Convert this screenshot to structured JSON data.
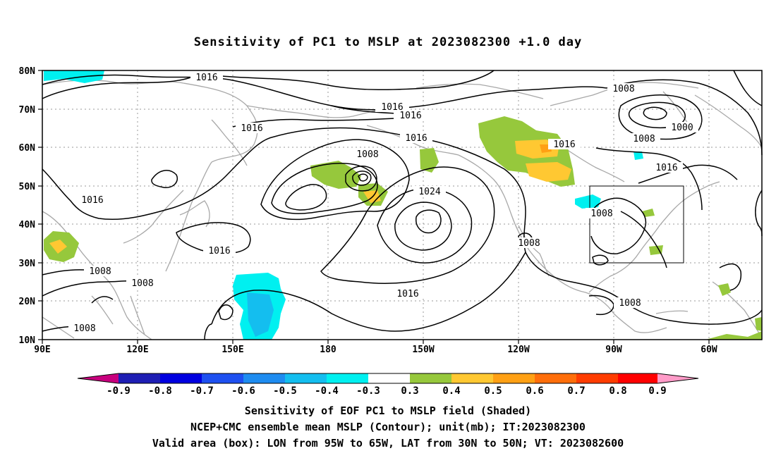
{
  "title": "Sensitivity of PC1 to MSLP at 2023082300 +1.0 day",
  "lat_labels": [
    "80N",
    "70N",
    "60N",
    "50N",
    "40N",
    "30N",
    "20N",
    "10N"
  ],
  "lon_labels": [
    "90E",
    "120E",
    "150E",
    "180",
    "150W",
    "120W",
    "90W",
    "60W"
  ],
  "contour_labels": [
    "1016",
    "1016",
    "1016",
    "1016",
    "1016",
    "1016",
    "1016",
    "1016",
    "1016",
    "1016",
    "1008",
    "1008",
    "1008",
    "1008",
    "1008",
    "1008",
    "1008",
    "1008",
    "1008",
    "1000",
    "1024"
  ],
  "colorbar": {
    "labels": [
      "-0.9",
      "-0.8",
      "-0.7",
      "-0.6",
      "-0.5",
      "-0.4",
      "-0.3",
      "0.3",
      "0.4",
      "0.5",
      "0.6",
      "0.7",
      "0.8",
      "0.9"
    ],
    "colors": [
      "#c8007e",
      "#1e1eb4",
      "#0000e0",
      "#1e50f0",
      "#1e8cf0",
      "#14beef",
      "#00f0f0",
      "#ffffff",
      "#96c83c",
      "#ffc832",
      "#ffa014",
      "#ff6e0a",
      "#ff3c00",
      "#ff0000",
      "#ff9bc8"
    ]
  },
  "captions": [
    "Sensitivity of EOF PC1 to MSLP field (Shaded)",
    "NCEP+CMC ensemble mean MSLP (Contour); unit(mb); IT:2023082300",
    "Valid area (box): LON from 95W to 65W, LAT from 30N to 50N; VT: 2023082600"
  ]
}
